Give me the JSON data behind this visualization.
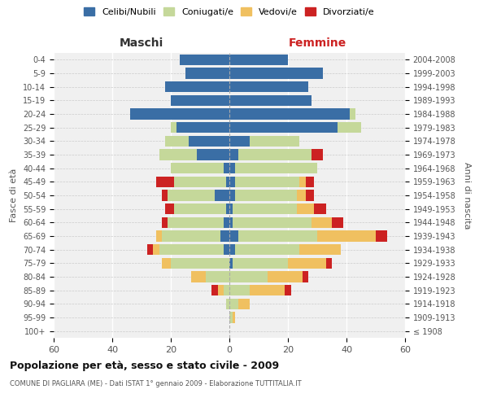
{
  "age_groups": [
    "100+",
    "95-99",
    "90-94",
    "85-89",
    "80-84",
    "75-79",
    "70-74",
    "65-69",
    "60-64",
    "55-59",
    "50-54",
    "45-49",
    "40-44",
    "35-39",
    "30-34",
    "25-29",
    "20-24",
    "15-19",
    "10-14",
    "5-9",
    "0-4"
  ],
  "birth_years": [
    "≤ 1908",
    "1909-1913",
    "1914-1918",
    "1919-1923",
    "1924-1928",
    "1929-1933",
    "1934-1938",
    "1939-1943",
    "1944-1948",
    "1949-1953",
    "1954-1958",
    "1959-1963",
    "1964-1968",
    "1969-1973",
    "1974-1978",
    "1979-1983",
    "1984-1988",
    "1989-1993",
    "1994-1998",
    "1999-2003",
    "2004-2008"
  ],
  "colors": {
    "celibi": "#3a6ea5",
    "coniugati": "#c5d89a",
    "vedovi": "#f0c060",
    "divorziati": "#cc2222"
  },
  "maschi": {
    "celibi": [
      0,
      0,
      0,
      0,
      0,
      0,
      2,
      3,
      2,
      1,
      5,
      1,
      2,
      11,
      14,
      18,
      34,
      20,
      22,
      15,
      17
    ],
    "coniugati": [
      0,
      0,
      1,
      2,
      8,
      20,
      22,
      20,
      19,
      18,
      16,
      18,
      18,
      13,
      8,
      2,
      0,
      0,
      0,
      0,
      0
    ],
    "vedovi": [
      0,
      0,
      0,
      2,
      5,
      3,
      2,
      2,
      0,
      0,
      0,
      0,
      0,
      0,
      0,
      0,
      0,
      0,
      0,
      0,
      0
    ],
    "divorziati": [
      0,
      0,
      0,
      2,
      0,
      0,
      2,
      0,
      2,
      3,
      2,
      6,
      0,
      0,
      0,
      0,
      0,
      0,
      0,
      0,
      0
    ]
  },
  "femmine": {
    "nubili": [
      0,
      0,
      0,
      0,
      0,
      1,
      2,
      3,
      1,
      1,
      2,
      2,
      2,
      3,
      7,
      37,
      41,
      28,
      27,
      32,
      20
    ],
    "coniugate": [
      0,
      1,
      3,
      7,
      13,
      19,
      22,
      27,
      27,
      22,
      21,
      22,
      28,
      25,
      17,
      8,
      2,
      0,
      0,
      0,
      0
    ],
    "vedove": [
      0,
      1,
      4,
      12,
      12,
      13,
      14,
      20,
      7,
      6,
      3,
      2,
      0,
      0,
      0,
      0,
      0,
      0,
      0,
      0,
      0
    ],
    "divorziate": [
      0,
      0,
      0,
      2,
      2,
      2,
      0,
      4,
      4,
      4,
      3,
      3,
      0,
      4,
      0,
      0,
      0,
      0,
      0,
      0,
      0
    ]
  },
  "title": "Popolazione per età, sesso e stato civile - 2009",
  "subtitle": "COMUNE DI PAGLIARA (ME) - Dati ISTAT 1° gennaio 2009 - Elaborazione TUTTITALIA.IT",
  "xlabel_left": "Maschi",
  "xlabel_right": "Femmine",
  "ylabel_left": "Fasce di età",
  "ylabel_right": "Anni di nascita",
  "xlim": 60,
  "legend_labels": [
    "Celibi/Nubili",
    "Coniugati/e",
    "Vedovi/e",
    "Divorziati/e"
  ],
  "bg_color": "#f0f0f0",
  "bar_height": 0.8
}
